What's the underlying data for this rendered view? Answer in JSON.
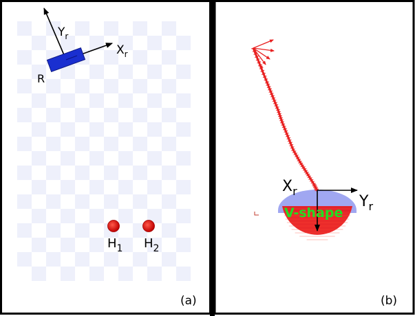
{
  "panels": {
    "a": {
      "caption": "(a)",
      "robot_label": "R",
      "axis_x_label": "X",
      "axis_x_sub": "r",
      "axis_y_label": "Y",
      "axis_y_sub": "r",
      "humans": [
        {
          "name": "H",
          "sub": "1"
        },
        {
          "name": "H",
          "sub": "2"
        }
      ]
    },
    "b": {
      "caption": "(b)",
      "axis_x_label": "X",
      "axis_x_sub": "r",
      "axis_y_label": "Y",
      "axis_y_sub": "r",
      "formation_label": "V-shape"
    }
  },
  "colors": {
    "robot": "#1a2fd0",
    "human": "#e01010",
    "checker": "#eef0fb",
    "trajectory": "#e82020",
    "formation_zone": "#e81818",
    "formation_halo": "#8f98ee",
    "formation_text": "#22dd22",
    "frame_border": "#000000"
  }
}
